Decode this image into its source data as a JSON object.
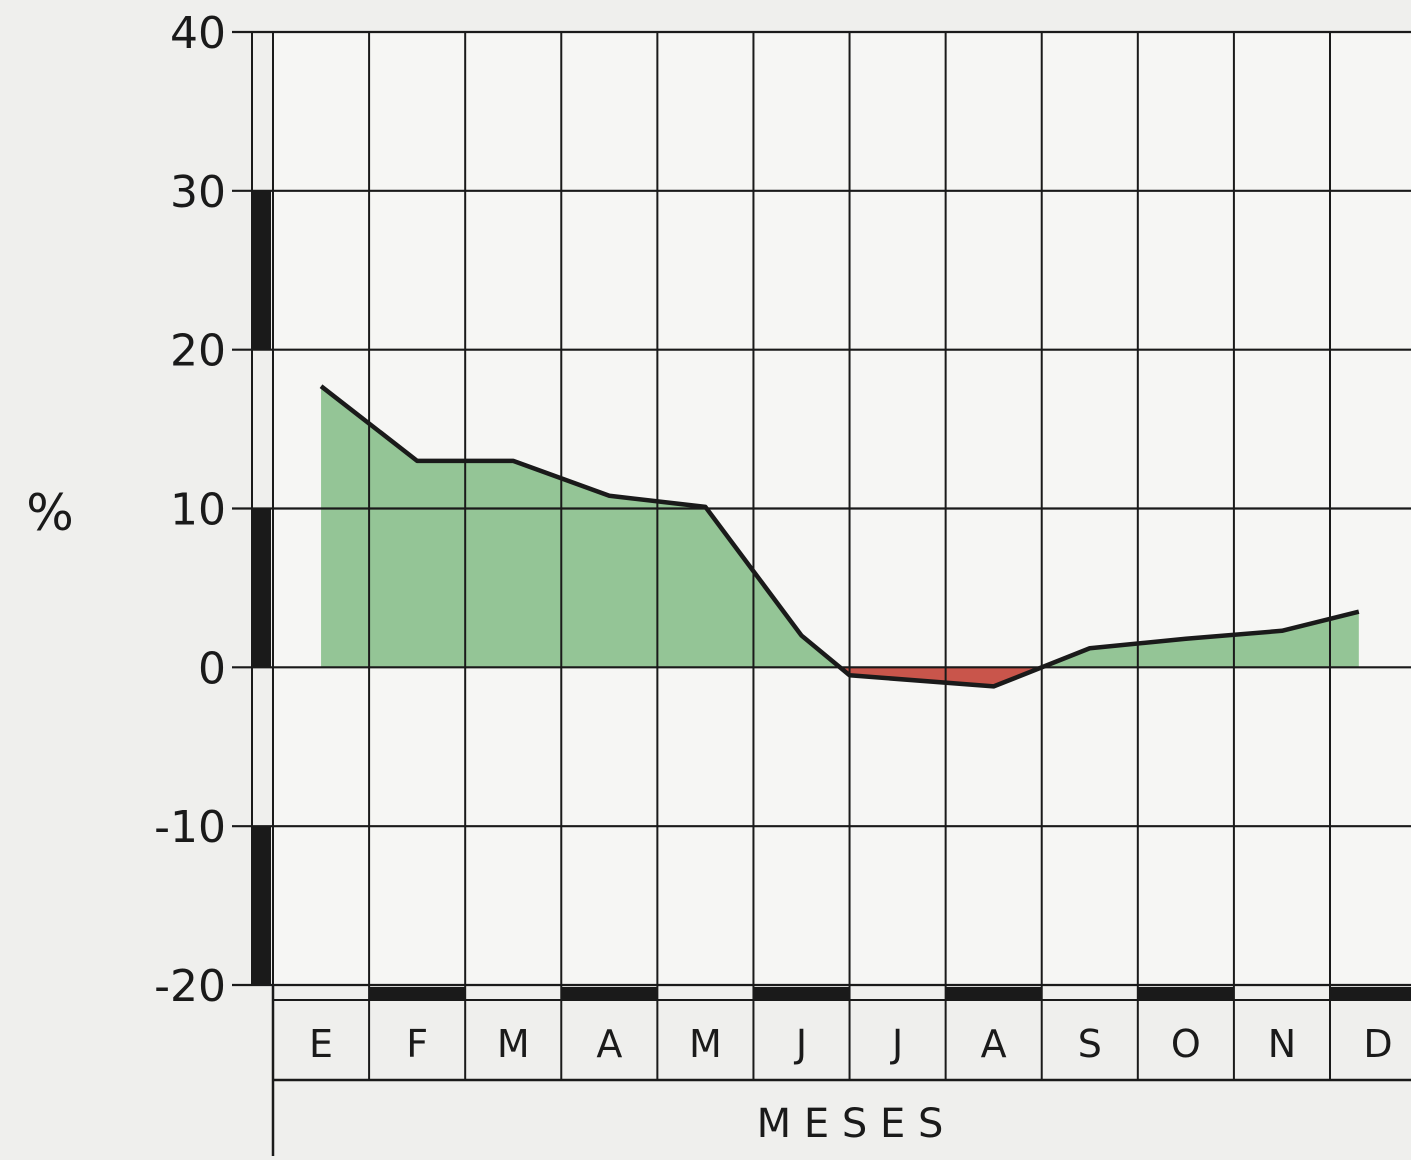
{
  "chart_data": {
    "type": "area",
    "title": "",
    "ylabel": "%",
    "xlabel": "M E S E S",
    "ylim": [
      -20,
      40
    ],
    "yticks": [
      40,
      30,
      20,
      10,
      0,
      -10,
      -20
    ],
    "ytick_labels": [
      "40",
      "30",
      "20",
      "10",
      "0",
      "-10",
      "-20"
    ],
    "categories": [
      "E",
      "F",
      "M",
      "A",
      "M",
      "J",
      "J",
      "A",
      "S",
      "O",
      "N",
      "D"
    ],
    "x": [
      1,
      1.5,
      2.5,
      3.5,
      4.5,
      5.5,
      6.5,
      7,
      8.5,
      9.5,
      10.5,
      11.5,
      12.3
    ],
    "values": [
      null,
      17.7,
      13.0,
      13.0,
      10.8,
      10.1,
      2.0,
      -0.5,
      -1.2,
      1.2,
      1.8,
      2.3,
      3.5
    ],
    "grid": true,
    "colors": {
      "positive_fill": "#94c596",
      "negative_fill": "#c9554b",
      "line": "#1a1a1a",
      "grid": "#1a1a1a",
      "background": "#efefed"
    }
  }
}
